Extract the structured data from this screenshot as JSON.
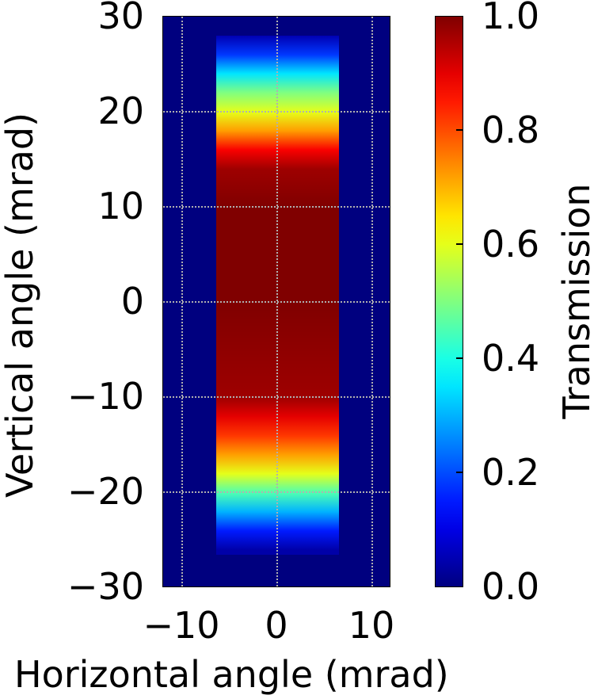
{
  "chart_data": {
    "type": "heatmap",
    "title": "",
    "xlabel": "Horizontal angle (mrad)",
    "ylabel": "Vertical angle (mrad)",
    "xlim": [
      -12,
      12
    ],
    "ylim": [
      -30,
      30
    ],
    "x_ticks": [
      -10,
      0,
      10
    ],
    "x_tick_labels": [
      "−10",
      "0",
      "10"
    ],
    "y_ticks": [
      30,
      20,
      10,
      0,
      -10,
      -20,
      -30
    ],
    "y_tick_labels": [
      "30",
      "20",
      "10",
      "0",
      "−10",
      "−20",
      "−30"
    ],
    "grid": true,
    "grid_style": "dotted",
    "colormap": "jet",
    "colorbar": {
      "label": "Transmission",
      "range": [
        0.0,
        1.0
      ],
      "ticks": [
        0.0,
        0.2,
        0.4,
        0.6,
        0.8,
        1.0
      ],
      "tick_labels": [
        "0.0",
        "0.2",
        "0.4",
        "0.6",
        "0.8",
        "1.0"
      ]
    },
    "background_value": 0.0,
    "beam_region": {
      "x_range": [
        -6.4,
        6.5
      ],
      "y_range": [
        -26.5,
        28.0
      ]
    },
    "vertical_profile": {
      "y": [
        28,
        26,
        24,
        22,
        20,
        18,
        16,
        14,
        10,
        0,
        -10,
        -12,
        -14,
        -16,
        -18,
        -20,
        -22,
        -24,
        -26
      ],
      "values": [
        0.05,
        0.18,
        0.35,
        0.5,
        0.6,
        0.72,
        0.88,
        0.97,
        1.0,
        1.0,
        0.97,
        0.9,
        0.82,
        0.72,
        0.6,
        0.45,
        0.3,
        0.15,
        0.04
      ]
    }
  }
}
